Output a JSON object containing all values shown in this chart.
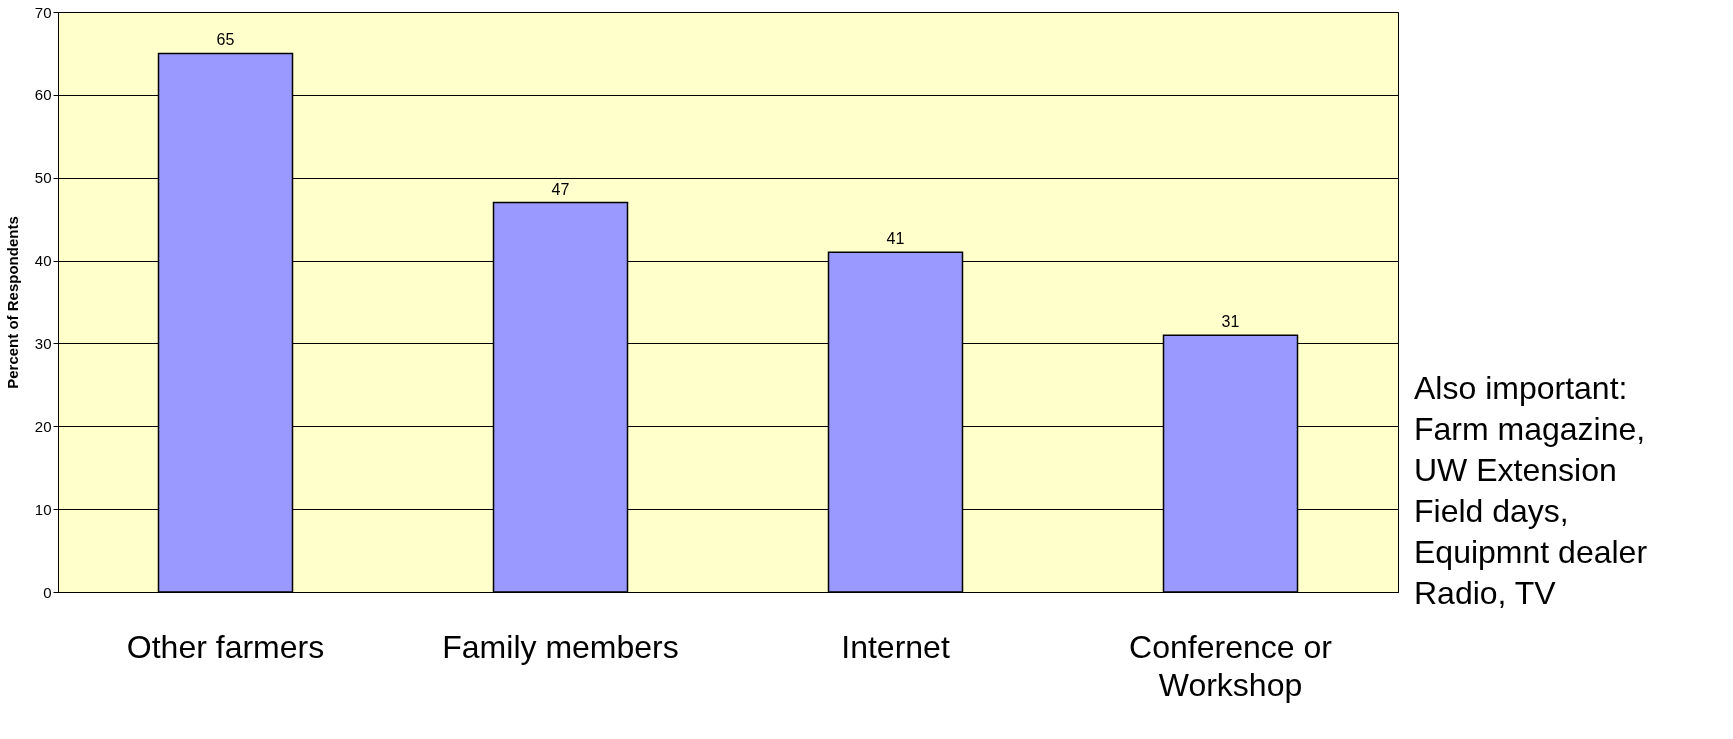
{
  "chart_data": {
    "type": "bar",
    "categories": [
      "Other farmers",
      "Family members",
      "Internet",
      "Conference or Workshop"
    ],
    "values": [
      65,
      47,
      41,
      31
    ],
    "color": "#9999ff",
    "ylabel": "Percent of Respondents",
    "ylim": [
      0,
      70
    ],
    "yticks": [
      0,
      10,
      20,
      30,
      40,
      50,
      60,
      70
    ],
    "grid": "y",
    "data_labels": true,
    "annotations": [
      "Also important:",
      "Farm magazine,",
      "UW Extension",
      "Field days,",
      "Equipmnt dealer",
      "Radio, TV"
    ]
  }
}
